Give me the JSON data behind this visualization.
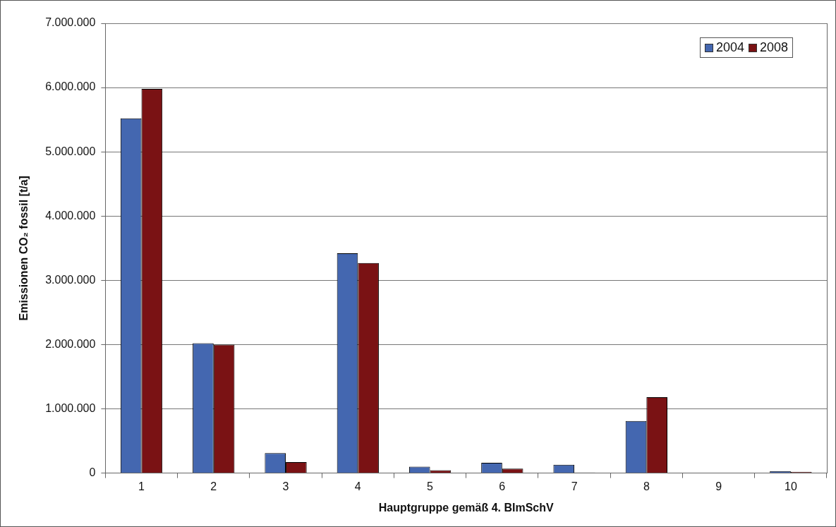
{
  "chart_data": {
    "type": "bar",
    "xlabel": "Hauptgruppe gemäß 4. BImSchV",
    "ylabel": "Emissionen CO₂ fossil [t/a]",
    "categories": [
      "1",
      "2",
      "3",
      "4",
      "5",
      "6",
      "7",
      "8",
      "9",
      "10"
    ],
    "series": [
      {
        "name": "2004",
        "color": "#4467b0",
        "values": [
          5520000,
          2020000,
          310000,
          3420000,
          100000,
          160000,
          130000,
          810000,
          0,
          30000
        ]
      },
      {
        "name": "2008",
        "color": "#7a1214",
        "values": [
          5980000,
          2000000,
          170000,
          3270000,
          45000,
          70000,
          10000,
          1180000,
          0,
          20000
        ]
      }
    ],
    "ylim": [
      0,
      7000000
    ],
    "yticks": [
      {
        "value": 0,
        "label": "0"
      },
      {
        "value": 1000000,
        "label": "1.000.000"
      },
      {
        "value": 2000000,
        "label": "2.000.000"
      },
      {
        "value": 3000000,
        "label": "3.000.000"
      },
      {
        "value": 4000000,
        "label": "4.000.000"
      },
      {
        "value": 5000000,
        "label": "5.000.000"
      },
      {
        "value": 6000000,
        "label": "6.000.000"
      },
      {
        "value": 7000000,
        "label": "7.000.000"
      }
    ],
    "grid": "y",
    "legend": "top right"
  }
}
